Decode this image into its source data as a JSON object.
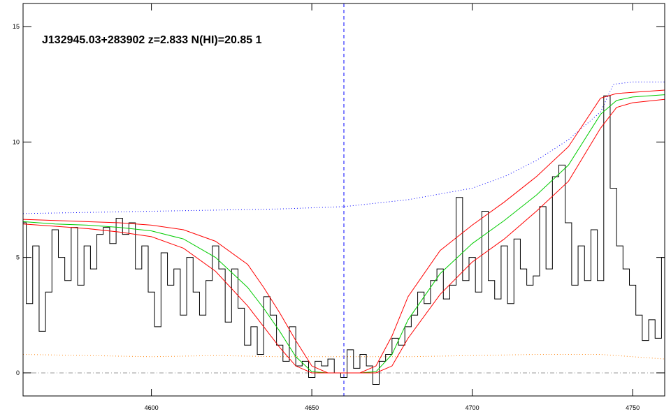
{
  "chart_data": {
    "type": "line",
    "title": "J132945.03+283902 z=2.833 N(HI)=20.85 1",
    "xlim": [
      4560,
      4760
    ],
    "ylim": [
      -1,
      16
    ],
    "xticks": [
      4600,
      4650,
      4700,
      4750
    ],
    "yticks": [
      0,
      5,
      10,
      15
    ],
    "vlines": [
      4660
    ],
    "vline_color": "#0000ff",
    "hlines": [
      0
    ],
    "hline_color": "#999999",
    "series": [
      {
        "color": "#ff8c1a",
        "style": "dotted",
        "x": [
          4560,
          4580,
          4600,
          4620,
          4640,
          4660,
          4680,
          4700,
          4720,
          4740,
          4760
        ],
        "values": [
          0.8,
          0.75,
          0.7,
          0.75,
          0.7,
          0.7,
          0.7,
          0.75,
          0.8,
          0.8,
          0.6
        ]
      },
      {
        "color": "#0000ff",
        "style": "dotted",
        "x": [
          4560,
          4580,
          4600,
          4620,
          4640,
          4660,
          4680,
          4700,
          4710,
          4720,
          4730,
          4740,
          4744,
          4750,
          4760
        ],
        "values": [
          6.9,
          6.95,
          7.0,
          7.05,
          7.1,
          7.2,
          7.5,
          8.0,
          8.5,
          9.2,
          10.1,
          11.3,
          12.5,
          12.6,
          12.6
        ]
      },
      {
        "color": "#000000",
        "style": "step",
        "x": [
          4560,
          4562,
          4564,
          4566,
          4568,
          4570,
          4572,
          4574,
          4576,
          4578,
          4580,
          4582,
          4584,
          4586,
          4588,
          4590,
          4592,
          4594,
          4596,
          4598,
          4600,
          4602,
          4604,
          4606,
          4608,
          4610,
          4612,
          4614,
          4616,
          4618,
          4620,
          4622,
          4624,
          4626,
          4628,
          4630,
          4632,
          4634,
          4636,
          4638,
          4640,
          4642,
          4644,
          4646,
          4648,
          4650,
          4652,
          4654,
          4656,
          4658,
          4660,
          4662,
          4664,
          4666,
          4668,
          4670,
          4672,
          4674,
          4676,
          4678,
          4680,
          4682,
          4684,
          4686,
          4688,
          4690,
          4692,
          4694,
          4696,
          4698,
          4700,
          4702,
          4704,
          4706,
          4708,
          4710,
          4712,
          4714,
          4716,
          4718,
          4720,
          4722,
          4724,
          4726,
          4728,
          4730,
          4732,
          4734,
          4736,
          4738,
          4740,
          4742,
          4744,
          4746,
          4748,
          4750,
          4752,
          4754,
          4756,
          4758,
          4760
        ],
        "values": [
          6.5,
          3.0,
          5.5,
          1.8,
          3.5,
          6.2,
          5.0,
          4.0,
          6.3,
          3.8,
          5.5,
          4.5,
          6.0,
          6.3,
          5.6,
          6.7,
          6.0,
          6.5,
          4.5,
          5.5,
          3.5,
          2.0,
          5.2,
          3.8,
          4.5,
          2.5,
          5.0,
          3.5,
          2.5,
          4.0,
          5.5,
          4.5,
          2.2,
          4.5,
          2.8,
          1.2,
          2.0,
          0.8,
          3.3,
          2.5,
          1.2,
          0.5,
          2.0,
          0.3,
          0.5,
          -0.2,
          0.5,
          0.3,
          0.6,
          0,
          -0.2,
          1.0,
          0.2,
          0.8,
          0.3,
          -0.5,
          0.5,
          0.8,
          1.5,
          1.2,
          2.0,
          2.5,
          3.5,
          3.0,
          4.0,
          4.5,
          3.2,
          3.8,
          7.6,
          4.0,
          5.0,
          3.5,
          7.0,
          4.0,
          3.2,
          5.5,
          3.0,
          5.8,
          4.5,
          3.8,
          4.2,
          7.2,
          4.5,
          8.5,
          9.0,
          6.5,
          3.8,
          5.5,
          4.0,
          6.2,
          4.0,
          12.0,
          8.0,
          5.5,
          4.5,
          3.8,
          2.5,
          1.4,
          2.3,
          1.5,
          5.0
        ]
      },
      {
        "color": "#ff0000",
        "style": "solid",
        "x": [
          4560,
          4570,
          4580,
          4590,
          4600,
          4610,
          4620,
          4630,
          4635,
          4640,
          4645,
          4650,
          4655,
          4660,
          4665,
          4670,
          4675,
          4680,
          4690,
          4700,
          4710,
          4720,
          4730,
          4740,
          4745,
          4750,
          4760
        ],
        "values": [
          6.65,
          6.6,
          6.55,
          6.5,
          6.4,
          6.2,
          5.7,
          4.7,
          3.7,
          2.6,
          1.4,
          0.3,
          0,
          0,
          0,
          0.3,
          1.6,
          3.3,
          5.3,
          6.4,
          7.4,
          8.5,
          9.8,
          11.9,
          12.1,
          12.15,
          12.25
        ]
      },
      {
        "color": "#00cc00",
        "style": "solid",
        "x": [
          4560,
          4570,
          4580,
          4590,
          4600,
          4610,
          4620,
          4630,
          4635,
          4640,
          4645,
          4650,
          4655,
          4660,
          4665,
          4670,
          4675,
          4680,
          4690,
          4700,
          4710,
          4720,
          4730,
          4740,
          4745,
          4750,
          4760
        ],
        "values": [
          6.55,
          6.45,
          6.4,
          6.3,
          6.15,
          5.8,
          5.0,
          3.7,
          2.8,
          1.8,
          0.7,
          0.05,
          0,
          0,
          0,
          0.05,
          0.8,
          2.3,
          4.3,
          5.6,
          6.6,
          7.7,
          9.0,
          11.2,
          11.8,
          11.95,
          12.05
        ]
      },
      {
        "color": "#ff0000",
        "style": "solid",
        "x": [
          4560,
          4570,
          4580,
          4590,
          4600,
          4610,
          4620,
          4630,
          4635,
          4640,
          4645,
          4650,
          4655,
          4660,
          4665,
          4670,
          4675,
          4680,
          4690,
          4700,
          4710,
          4720,
          4730,
          4740,
          4745,
          4750,
          4760
        ],
        "values": [
          6.45,
          6.35,
          6.25,
          6.1,
          5.9,
          5.4,
          4.4,
          2.9,
          2.0,
          1.1,
          0.3,
          0,
          0,
          0,
          0,
          0,
          0.3,
          1.5,
          3.4,
          4.8,
          5.8,
          7.0,
          8.3,
          10.6,
          11.5,
          11.7,
          11.85
        ]
      }
    ]
  }
}
